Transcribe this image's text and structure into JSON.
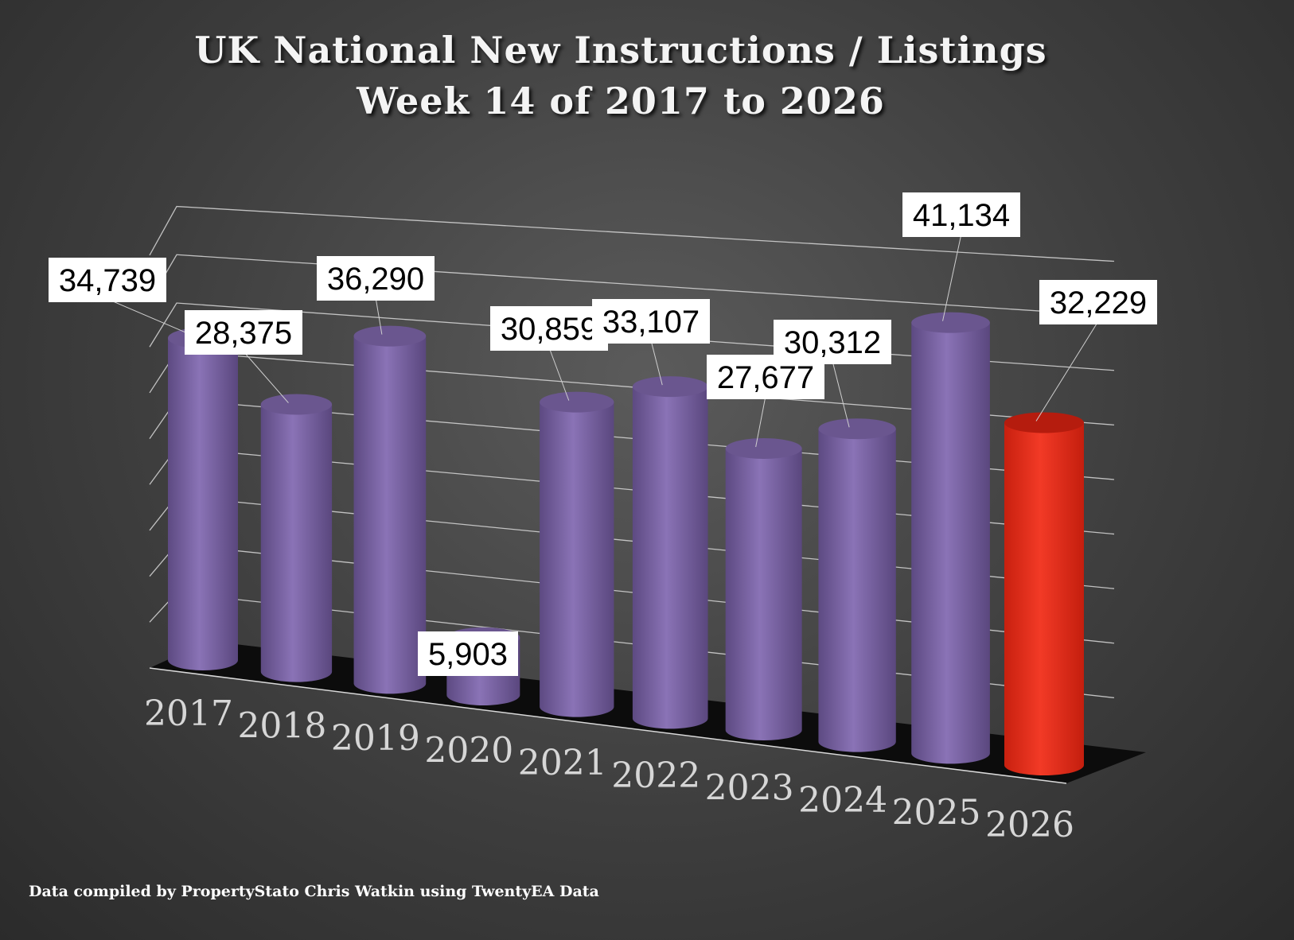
{
  "title_line1": "UK National New Instructions / Listings",
  "title_line2": "Week 14 of 2017 to 2026",
  "footer": "Data compiled by PropertyStato Chris Watkin using TwentyEA Data",
  "colors": {
    "bar": "#7e66a8",
    "highlight": "#e8301e",
    "label_bg": "#ffffff",
    "gridline": "#d8d8d8",
    "tick_text": "#d6d6d6"
  },
  "chart_data": {
    "type": "bar",
    "categories": [
      "2017",
      "2018",
      "2019",
      "2020",
      "2021",
      "2022",
      "2023",
      "2024",
      "2025",
      "2026"
    ],
    "values": [
      34739,
      28375,
      36290,
      5903,
      30859,
      33107,
      27677,
      30312,
      41134,
      32229
    ],
    "data_labels": [
      "34,739",
      "28,375",
      "36,290",
      "5,903",
      "30,859",
      "33,107",
      "27,677",
      "30,312",
      "41,134",
      "32,229"
    ],
    "highlight_category": "2026",
    "ylim": [
      0,
      45000
    ],
    "grid": true,
    "legend": "none",
    "title": "UK National New Instructions / Listings Week 14 of 2017 to 2026"
  }
}
